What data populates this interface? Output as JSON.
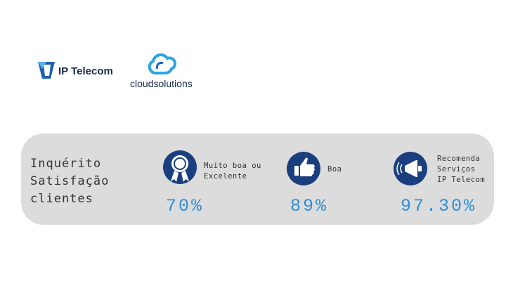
{
  "logos": {
    "ip_telecom": "IP Telecom",
    "cloudsolutions": "cloudsolutions"
  },
  "panel": {
    "title_lines": [
      "Inquérito",
      "Satisfação",
      "clientes"
    ],
    "stats": [
      {
        "label_lines": [
          "Muito boa ou",
          "Excelente"
        ],
        "value": "70%"
      },
      {
        "label_lines": [
          "Boa"
        ],
        "value": "89%"
      },
      {
        "label_lines": [
          "Recomenda",
          "Serviços",
          "IP Telecom"
        ],
        "value": "97.30%"
      }
    ]
  }
}
